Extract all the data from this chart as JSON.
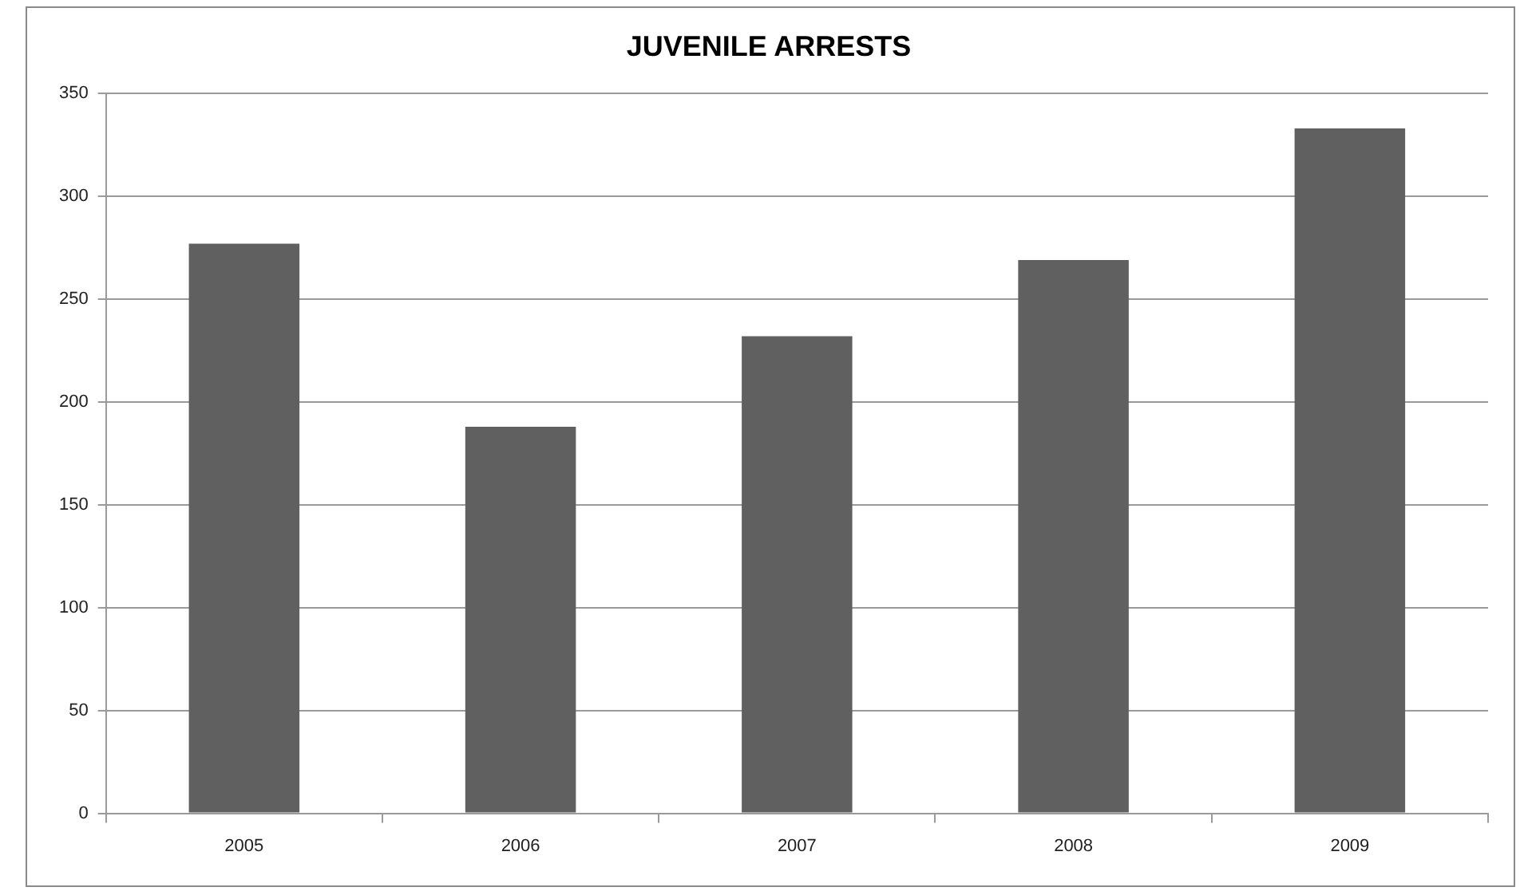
{
  "chart_data": {
    "type": "bar",
    "title": "JUVENILE ARRESTS",
    "categories": [
      "2005",
      "2006",
      "2007",
      "2008",
      "2009"
    ],
    "values": [
      277,
      188,
      232,
      269,
      333
    ],
    "color": "#606060",
    "ylim": [
      0,
      350
    ],
    "yticks": [
      0,
      50,
      100,
      150,
      200,
      250,
      300,
      350
    ],
    "grid": "y"
  }
}
